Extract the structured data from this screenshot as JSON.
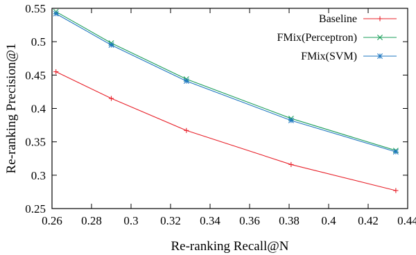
{
  "chart_data": {
    "type": "line",
    "title": "",
    "xlabel": "Re-ranking Recall@N",
    "ylabel": "Re-ranking Precision@1",
    "xlim": [
      0.26,
      0.44
    ],
    "ylim": [
      0.25,
      0.55
    ],
    "xticks": [
      0.26,
      0.28,
      0.3,
      0.32,
      0.34,
      0.36,
      0.38,
      0.4,
      0.42,
      0.44
    ],
    "xtick_labels": [
      "0.26",
      "0.28",
      "0.3",
      "0.32",
      "0.34",
      "0.36",
      "0.38",
      "0.4",
      "0.42",
      "0.44"
    ],
    "yticks": [
      0.25,
      0.3,
      0.35,
      0.4,
      0.45,
      0.5,
      0.55
    ],
    "ytick_labels": [
      "0.25",
      "0.3",
      "0.35",
      "0.4",
      "0.45",
      "0.5",
      "0.55"
    ],
    "grid": false,
    "legend_position": "top-right",
    "series": [
      {
        "name": "Baseline",
        "color": "#e8212a",
        "marker": "plus",
        "x": [
          0.262,
          0.29,
          0.328,
          0.381,
          0.434
        ],
        "y": [
          0.455,
          0.415,
          0.367,
          0.316,
          0.277
        ]
      },
      {
        "name": "FMix(Perceptron)",
        "color": "#1a9e5a",
        "marker": "cross",
        "x": [
          0.262,
          0.29,
          0.328,
          0.381,
          0.434
        ],
        "y": [
          0.545,
          0.498,
          0.444,
          0.385,
          0.337
        ]
      },
      {
        "name": "FMix(SVM)",
        "color": "#1f77c0",
        "marker": "star",
        "x": [
          0.262,
          0.29,
          0.328,
          0.381,
          0.434
        ],
        "y": [
          0.542,
          0.495,
          0.441,
          0.382,
          0.335
        ]
      }
    ]
  }
}
